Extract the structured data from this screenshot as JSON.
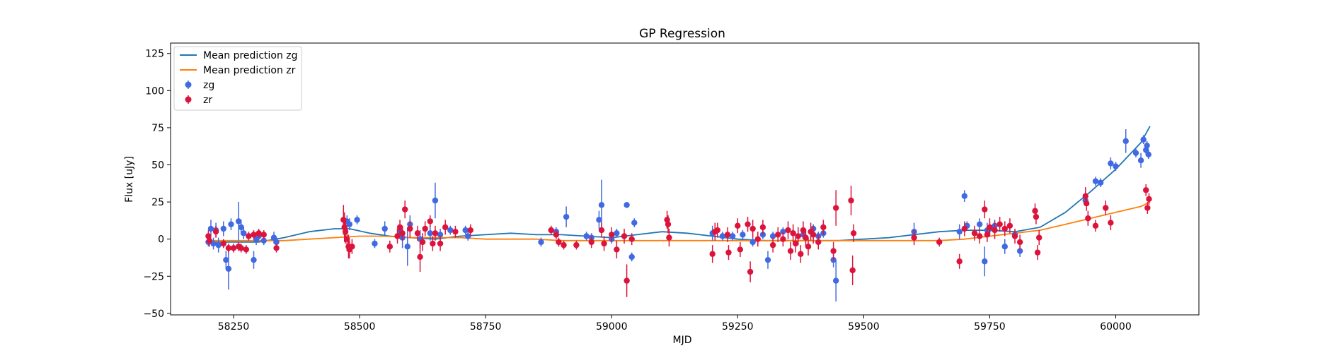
{
  "chart_data": {
    "type": "scatter",
    "title": "GP Regression",
    "xlabel": "MJD",
    "ylabel": "Flux [uJy]",
    "xlim": [
      58125,
      60165
    ],
    "ylim": [
      -51,
      132
    ],
    "xticks": [
      58250,
      58500,
      58750,
      59000,
      59250,
      59500,
      59750,
      60000
    ],
    "yticks": [
      -50,
      -25,
      0,
      25,
      50,
      75,
      100,
      125
    ],
    "grid": false,
    "legend_position": "top-left",
    "legend": [
      "Mean prediction zg",
      "Mean prediction zr",
      "zg",
      "zr"
    ],
    "colors": {
      "zg_line": "#1f77b4",
      "zr_line": "#ff7f0e",
      "zg_points": "#4169e1",
      "zr_points": "#dc143c"
    },
    "series": [
      {
        "name": "Mean prediction zg",
        "kind": "line",
        "x": [
          58200,
          58250,
          58300,
          58350,
          58400,
          58450,
          58480,
          58520,
          58560,
          58600,
          58650,
          58700,
          58750,
          58800,
          58850,
          58900,
          58950,
          59000,
          59050,
          59100,
          59150,
          59200,
          59250,
          59300,
          59350,
          59400,
          59450,
          59500,
          59550,
          59600,
          59650,
          59700,
          59750,
          59800,
          59850,
          59900,
          59950,
          60000,
          60050,
          60068
        ],
        "y": [
          -2,
          -2,
          -2,
          1,
          5,
          7,
          7,
          4,
          2,
          1,
          0,
          2,
          3,
          4,
          3,
          3,
          2,
          1,
          3,
          5,
          4,
          2,
          0,
          -1,
          -1,
          -1,
          -1,
          0,
          1,
          3,
          5,
          6,
          6,
          5,
          8,
          18,
          32,
          47,
          65,
          76
        ]
      },
      {
        "name": "Mean prediction zr",
        "kind": "line",
        "x": [
          58200,
          58250,
          58300,
          58350,
          58400,
          58450,
          58500,
          58550,
          58600,
          58650,
          58700,
          58750,
          58800,
          58850,
          58900,
          58950,
          59000,
          59050,
          59100,
          59150,
          59200,
          59250,
          59300,
          59350,
          59400,
          59450,
          59500,
          59550,
          59600,
          59650,
          59700,
          59750,
          59800,
          59850,
          59900,
          59950,
          60000,
          60050,
          60068
        ],
        "y": [
          -1,
          -1,
          -1,
          -1,
          0,
          1,
          2,
          2,
          1,
          1,
          1,
          0,
          0,
          0,
          -1,
          -1,
          -1,
          -1,
          -1,
          -1,
          -1,
          -1,
          -1,
          -1,
          -1,
          -1,
          -1,
          -1,
          -1,
          -1,
          0,
          2,
          4,
          6,
          10,
          14,
          18,
          22,
          25
        ]
      },
      {
        "name": "zg",
        "kind": "scatter",
        "x": [
          58200,
          58205,
          58210,
          58215,
          58220,
          58230,
          58235,
          58240,
          58245,
          58260,
          58265,
          58270,
          58290,
          58295,
          58300,
          58310,
          58330,
          58335,
          58470,
          58475,
          58480,
          58495,
          58530,
          58550,
          58580,
          58585,
          58595,
          58600,
          58620,
          58640,
          58650,
          58660,
          58680,
          58710,
          58715,
          58860,
          58880,
          58890,
          58910,
          58950,
          58960,
          58975,
          58980,
          59000,
          59010,
          59030,
          59040,
          59045,
          59200,
          59220,
          59240,
          59260,
          59280,
          59300,
          59310,
          59320,
          59340,
          59360,
          59380,
          59400,
          59410,
          59420,
          59440,
          59445,
          59600,
          59690,
          59700,
          59705,
          59720,
          59730,
          59740,
          59745,
          59750,
          59760,
          59780,
          59800,
          59810,
          59940,
          59960,
          59970,
          59990,
          60000,
          60020,
          60040,
          60050,
          60055,
          60060,
          60062,
          60065
        ],
        "y": [
          -2,
          7,
          -3,
          6,
          -4,
          7,
          -14,
          -20,
          10,
          12,
          8,
          4,
          -14,
          0,
          2,
          -1,
          1,
          -2,
          8,
          12,
          10,
          13,
          -3,
          7,
          5,
          1,
          -5,
          10,
          0,
          4,
          26,
          3,
          6,
          6,
          2,
          -2,
          6,
          5,
          15,
          2,
          1,
          13,
          23,
          0,
          4,
          23,
          -12,
          11,
          4,
          2,
          2,
          3,
          -2,
          3,
          -14,
          2,
          5,
          4,
          3,
          7,
          2,
          4,
          -14,
          -28,
          5,
          5,
          29,
          9,
          4,
          10,
          -15,
          6,
          7,
          9,
          -5,
          3,
          -8,
          26,
          39,
          38,
          51,
          49,
          66,
          58,
          53,
          67,
          60,
          63,
          57
        ],
        "err": [
          3,
          6,
          4,
          5,
          5,
          5,
          6,
          14,
          4,
          13,
          5,
          4,
          6,
          4,
          3,
          3,
          4,
          3,
          5,
          4,
          4,
          3,
          3,
          5,
          5,
          7,
          13,
          6,
          6,
          5,
          12,
          4,
          3,
          3,
          3,
          3,
          3,
          3,
          7,
          3,
          3,
          6,
          17,
          3,
          3,
          2,
          3,
          3,
          5,
          3,
          3,
          3,
          3,
          3,
          6,
          3,
          3,
          3,
          3,
          3,
          3,
          3,
          5,
          14,
          6,
          5,
          4,
          3,
          3,
          4,
          10,
          5,
          4,
          4,
          5,
          3,
          4,
          3,
          3,
          3,
          4,
          3,
          8,
          3,
          5,
          3,
          3,
          3,
          3
        ]
      },
      {
        "name": "zr",
        "kind": "scatter",
        "x": [
          58200,
          58202,
          58215,
          58230,
          58240,
          58250,
          58260,
          58265,
          58275,
          58280,
          58290,
          58300,
          58310,
          58335,
          58468,
          58470,
          58472,
          58475,
          58478,
          58480,
          58485,
          58560,
          58575,
          58580,
          58585,
          58590,
          58600,
          58615,
          58620,
          58625,
          58630,
          58640,
          58645,
          58650,
          58660,
          58670,
          58690,
          58720,
          58880,
          58890,
          58895,
          58905,
          58930,
          58960,
          58980,
          58985,
          59000,
          59010,
          59025,
          59030,
          59040,
          59110,
          59112,
          59114,
          59200,
          59205,
          59210,
          59230,
          59232,
          59250,
          59255,
          59270,
          59275,
          59280,
          59290,
          59300,
          59320,
          59330,
          59340,
          59350,
          59355,
          59360,
          59365,
          59370,
          59375,
          59380,
          59385,
          59390,
          59395,
          59400,
          59410,
          59420,
          59440,
          59445,
          59475,
          59478,
          59480,
          59600,
          59650,
          59690,
          59700,
          59720,
          59730,
          59740,
          59745,
          59750,
          59760,
          59770,
          59780,
          59790,
          59800,
          59810,
          59840,
          59842,
          59845,
          59848,
          59940,
          59942,
          59945,
          59960,
          59980,
          59990,
          60060,
          60063,
          60066
        ],
        "y": [
          2,
          -1,
          5,
          -3,
          -6,
          -6,
          -5,
          -6,
          -7,
          2,
          3,
          4,
          3,
          -6,
          13,
          8,
          5,
          0,
          -5,
          -7,
          -5,
          -5,
          2,
          8,
          4,
          20,
          7,
          4,
          -12,
          -2,
          7,
          12,
          -3,
          4,
          -3,
          8,
          5,
          6,
          6,
          3,
          -2,
          -4,
          -4,
          -2,
          6,
          -3,
          3,
          -7,
          2,
          -28,
          0,
          13,
          10,
          1,
          -10,
          5,
          6,
          3,
          -9,
          9,
          -7,
          10,
          -22,
          7,
          0,
          8,
          -4,
          3,
          0,
          6,
          -8,
          4,
          -3,
          2,
          -10,
          6,
          1,
          -5,
          5,
          3,
          -2,
          8,
          -8,
          21,
          26,
          -21,
          4,
          1,
          -2,
          -15,
          7,
          4,
          2,
          20,
          3,
          8,
          6,
          10,
          7,
          9,
          2,
          -2,
          19,
          15,
          -9,
          1,
          29,
          24,
          14,
          9,
          21,
          11,
          33,
          21,
          27
        ],
        "err": [
          4,
          4,
          4,
          3,
          3,
          3,
          3,
          3,
          3,
          3,
          3,
          3,
          3,
          3,
          10,
          10,
          8,
          8,
          8,
          6,
          5,
          4,
          5,
          5,
          5,
          6,
          6,
          5,
          10,
          6,
          5,
          4,
          5,
          5,
          5,
          5,
          4,
          4,
          3,
          3,
          3,
          3,
          3,
          4,
          5,
          5,
          5,
          6,
          5,
          11,
          4,
          6,
          6,
          6,
          6,
          6,
          5,
          5,
          5,
          5,
          5,
          5,
          7,
          6,
          5,
          5,
          5,
          5,
          5,
          6,
          6,
          6,
          6,
          6,
          6,
          6,
          6,
          6,
          6,
          6,
          5,
          5,
          6,
          12,
          10,
          10,
          6,
          5,
          3,
          5,
          5,
          5,
          5,
          6,
          5,
          6,
          6,
          5,
          5,
          5,
          5,
          5,
          5,
          5,
          5,
          5,
          6,
          5,
          5,
          4,
          5,
          5,
          4,
          4,
          4
        ]
      }
    ]
  }
}
